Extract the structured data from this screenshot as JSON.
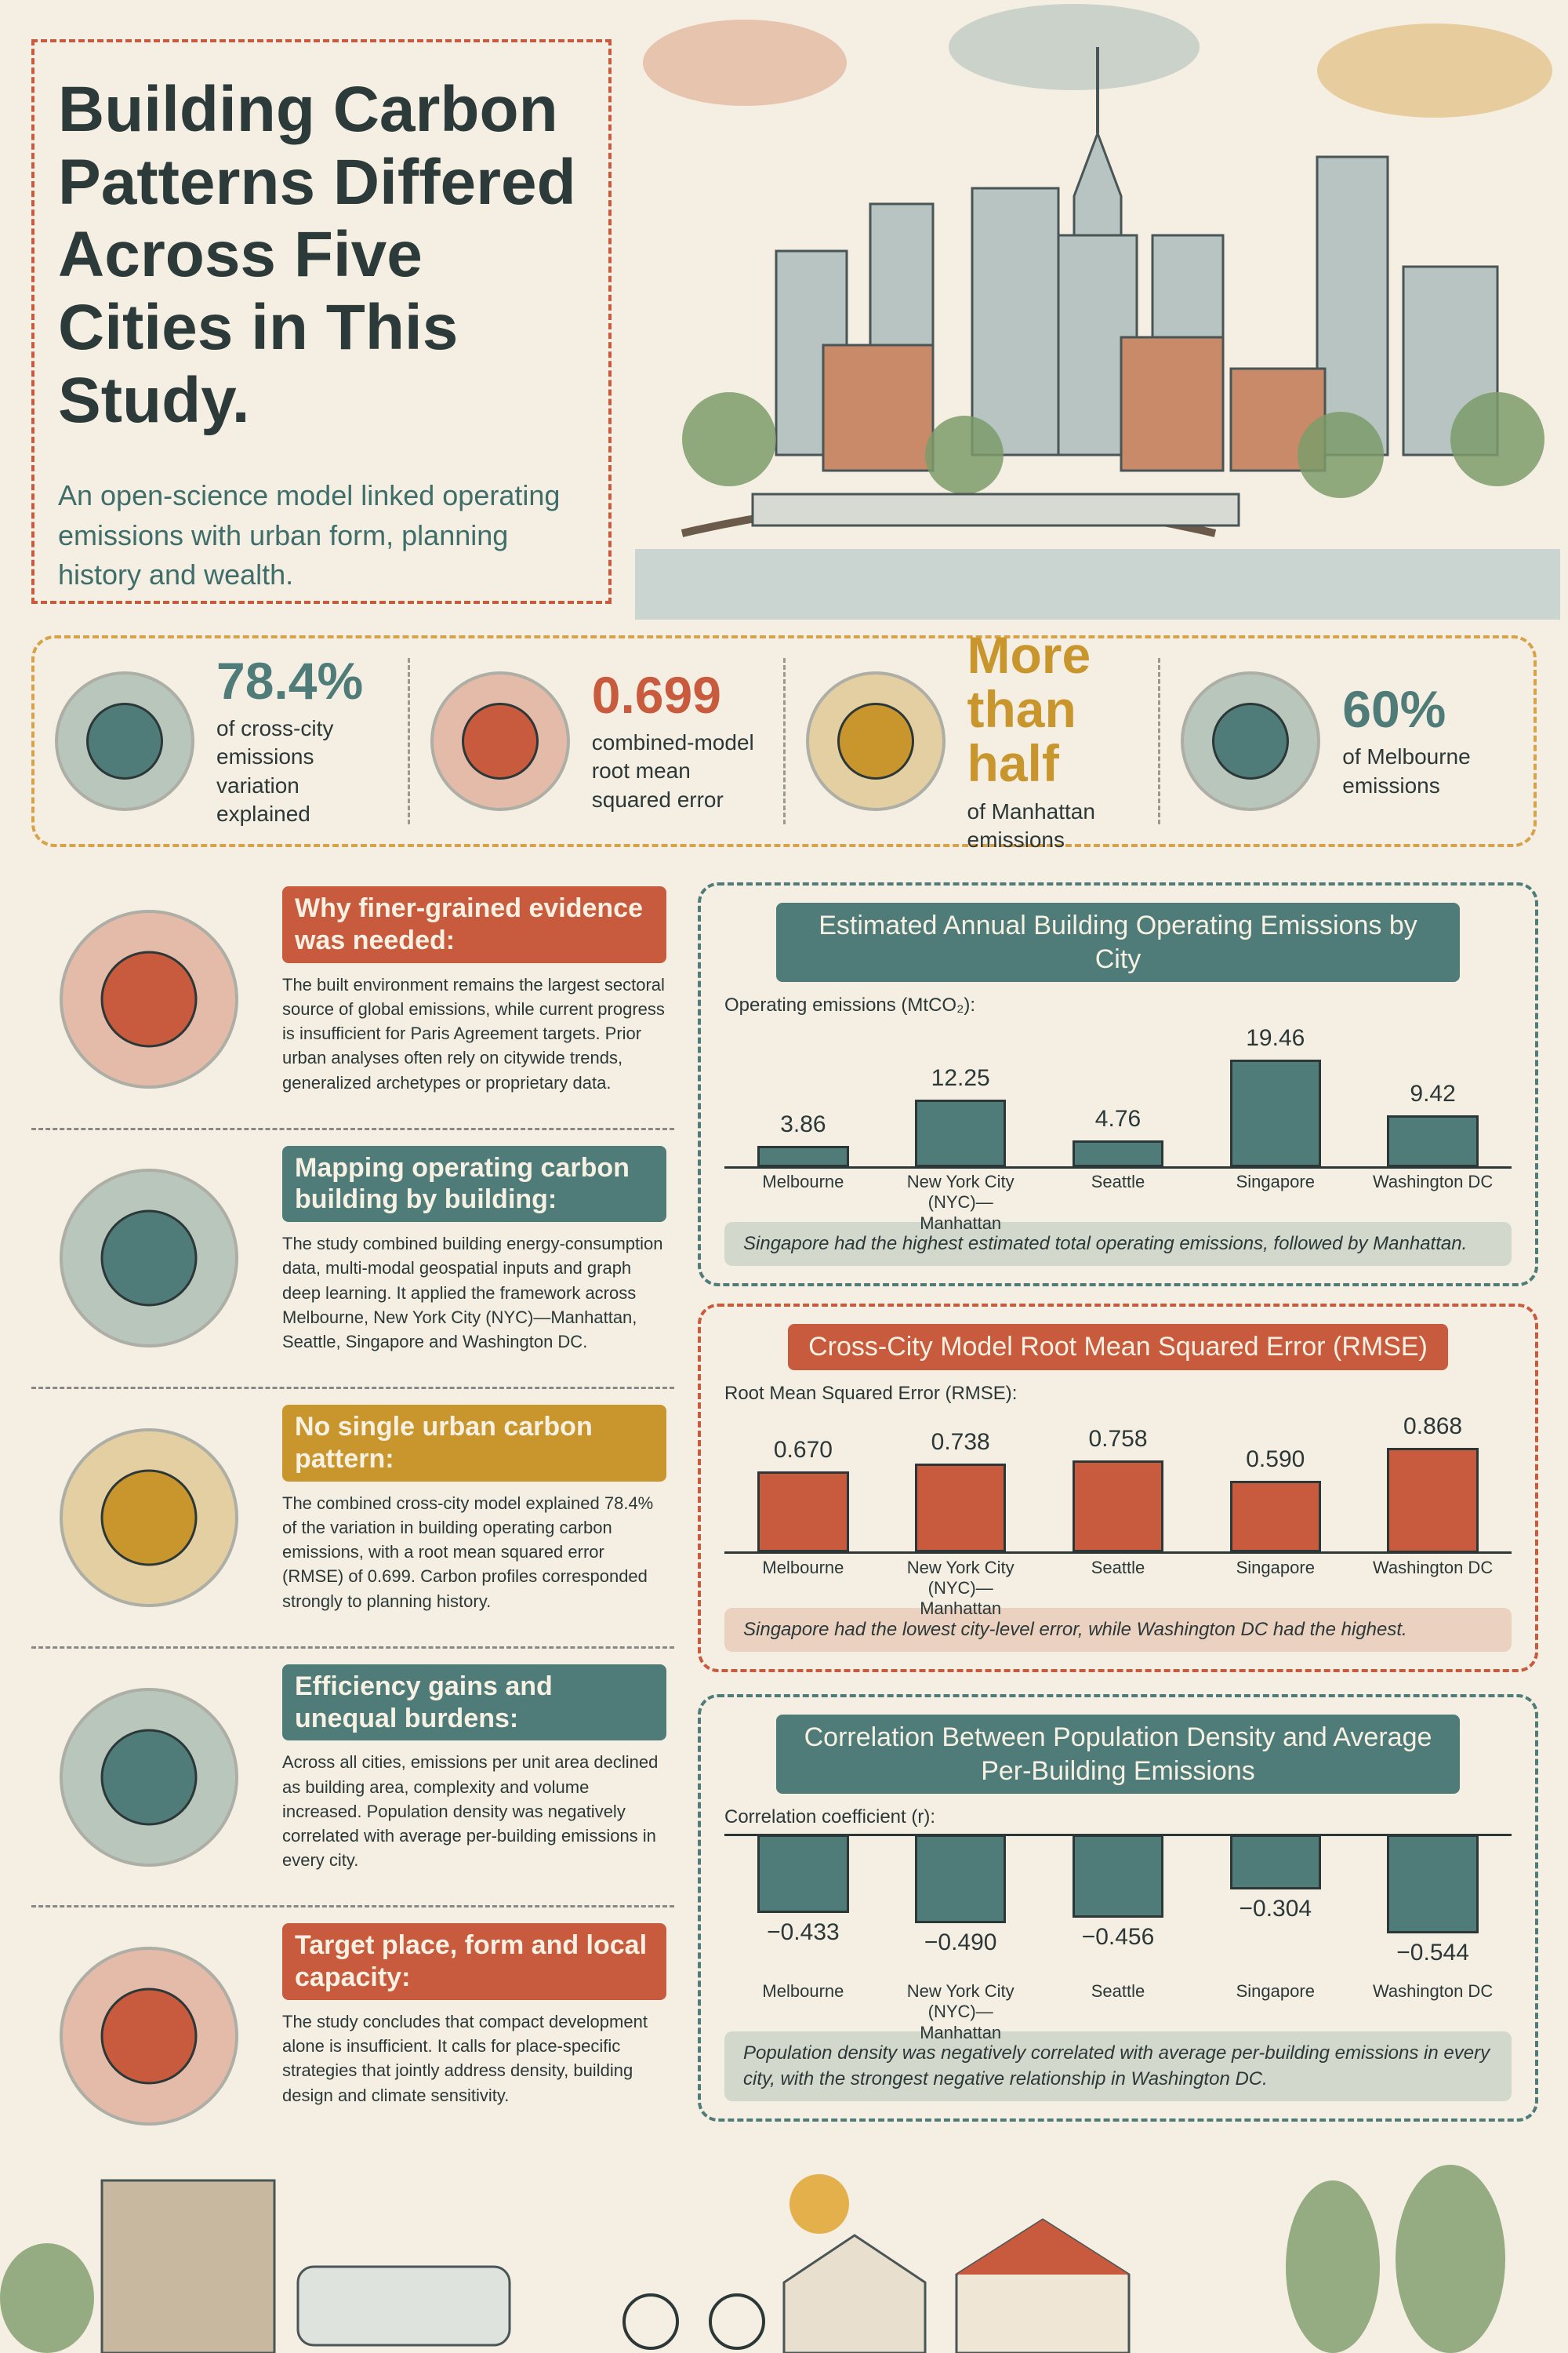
{
  "header": {
    "title": "Building Carbon Patterns Differed Across Five Cities in This Study.",
    "subtitle": "An open-science model linked operating emissions with urban form, planning history and wealth."
  },
  "stats": [
    {
      "value": "78.4%",
      "label": "of cross-city emissions variation explained"
    },
    {
      "value": "0.699",
      "label": "combined-model root mean squared error"
    },
    {
      "value": "More than half",
      "label": "of Manhattan emissions"
    },
    {
      "value": "60%",
      "label": "of Melbourne emissions"
    }
  ],
  "sections": [
    {
      "heading": "Why finer-grained evidence was needed:",
      "body": "The built environment remains the largest sectoral source of global emissions, while current progress is insufficient for Paris Agreement targets. Prior urban analyses often rely on citywide trends, generalized archetypes or proprietary data."
    },
    {
      "heading": "Mapping operating carbon building by building:",
      "body": "The study combined building energy-consumption data, multi-modal geospatial inputs and graph deep learning. It applied the framework across Melbourne, New York City (NYC)—Manhattan, Seattle, Singapore and Washington DC."
    },
    {
      "heading": "No single urban carbon pattern:",
      "body": "The combined cross-city model explained 78.4% of the variation in building operating carbon emissions, with a root mean squared error (RMSE) of 0.699. Carbon profiles corresponded strongly to planning history."
    },
    {
      "heading": "Efficiency gains and unequal burdens:",
      "body": "Across all cities, emissions per unit area declined as building area, complexity and volume increased. Population density was negatively correlated with average per-building emissions in every city."
    },
    {
      "heading": "Target place, form and local capacity:",
      "body": "The study concludes that compact development alone is insufficient. It calls for place-specific strategies that jointly address density, building design and climate sensitivity."
    }
  ],
  "chart_data": [
    {
      "type": "bar",
      "title": "Estimated Annual Building Operating Emissions by City",
      "y_label": "Operating emissions (MtCO₂):",
      "categories": [
        "Melbourne",
        "New York City (NYC)—Manhattan",
        "Seattle",
        "Singapore",
        "Washington DC"
      ],
      "values": [
        3.86,
        12.25,
        4.76,
        19.46,
        9.42
      ],
      "color": "#4f7c78",
      "note": "Singapore had the highest estimated total operating emissions, followed by Manhattan."
    },
    {
      "type": "bar",
      "title": "Cross-City Model Root Mean Squared Error (RMSE)",
      "y_label": "Root Mean Squared Error (RMSE):",
      "categories": [
        "Melbourne",
        "New York City (NYC)—Manhattan",
        "Seattle",
        "Singapore",
        "Washington DC"
      ],
      "values": [
        0.67,
        0.738,
        0.758,
        0.59,
        0.868
      ],
      "value_labels": [
        "0.670",
        "0.738",
        "0.758",
        "0.590",
        "0.868"
      ],
      "color": "#c85a3e",
      "note": "Singapore had the lowest city-level error, while Washington DC had the highest."
    },
    {
      "type": "bar",
      "title": "Correlation Between Population Density and Average Per-Building Emissions",
      "y_label": "Correlation coefficient (r):",
      "categories": [
        "Melbourne",
        "New York City (NYC)—Manhattan",
        "Seattle",
        "Singapore",
        "Washington DC"
      ],
      "values": [
        -0.433,
        -0.49,
        -0.456,
        -0.304,
        -0.544
      ],
      "value_labels": [
        "−0.433",
        "−0.490",
        "−0.456",
        "−0.304",
        "−0.544"
      ],
      "color": "#4f7c78",
      "note": "Population density was negatively correlated with average per-building emissions in every city, with the strongest negative relationship in Washington DC."
    }
  ]
}
